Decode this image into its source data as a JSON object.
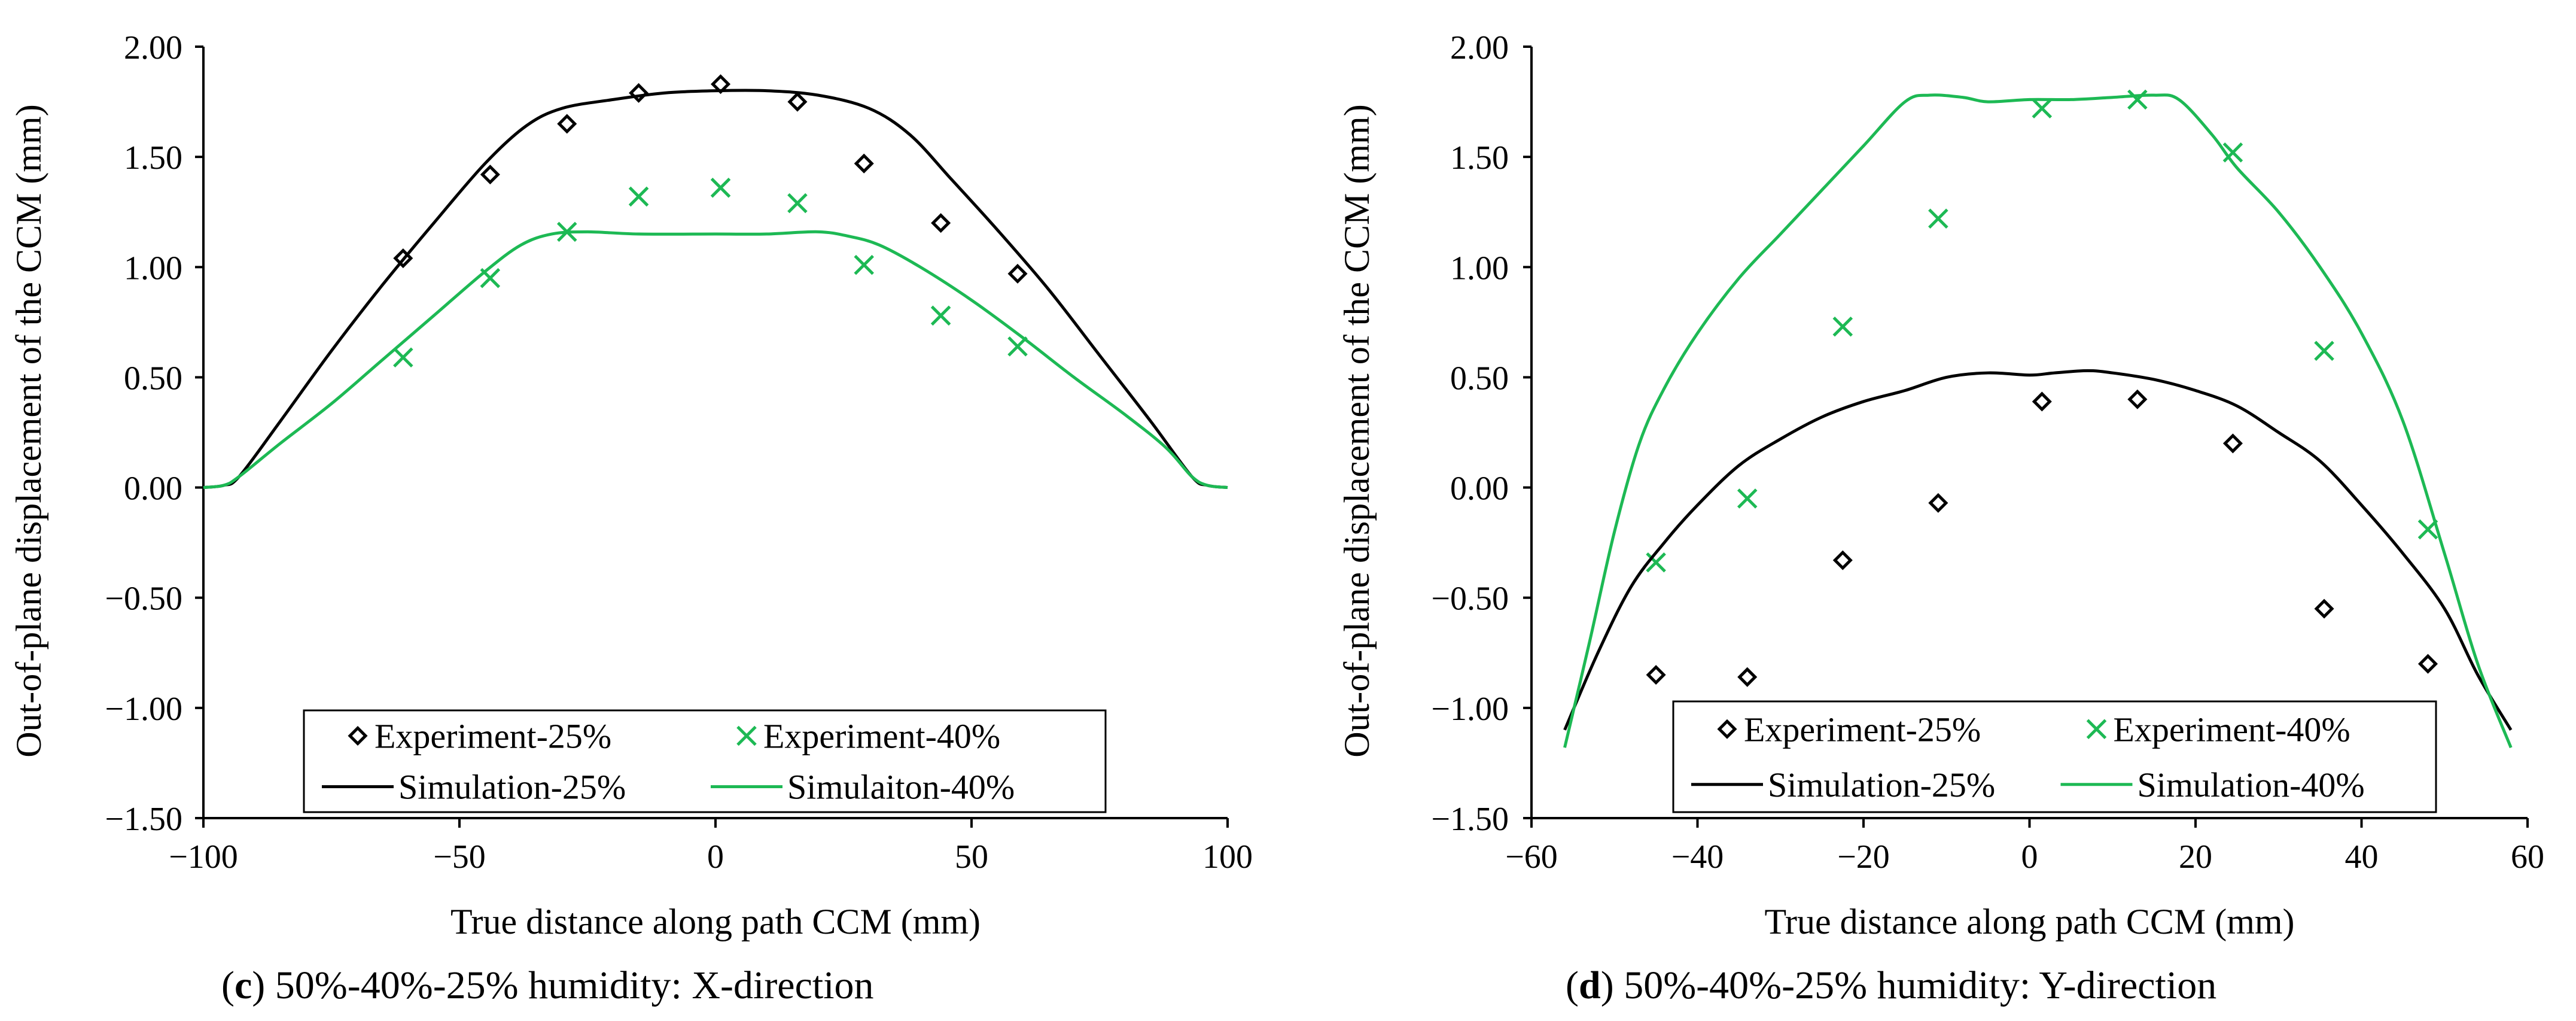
{
  "chart_data": [
    {
      "type": "scatter",
      "caption_letter": "c",
      "caption_text": " 50%-40%-25% humidity: X-direction",
      "xlabel": "True distance along path CCM (mm)",
      "ylabel": "Out-of-plane displacement of the CCM (mm)",
      "xlim": [
        -100,
        100
      ],
      "ylim": [
        -1.5,
        2.0
      ],
      "x_ticks": [
        -100,
        -50,
        0,
        50,
        100
      ],
      "x_tick_labels": [
        "−100",
        "−50",
        "0",
        "50",
        "100"
      ],
      "y_ticks": [
        2.0,
        1.5,
        1.0,
        0.5,
        0.0,
        -0.5,
        -1.0,
        -1.5
      ],
      "y_tick_labels": [
        "2.00",
        "1.50",
        "1.00",
        "0.50",
        "0.00",
        "−0.50",
        "−1.00",
        "−1.50"
      ],
      "legend_position": "bottom-center",
      "series": [
        {
          "name": "Experiment-25%",
          "kind": "marker",
          "marker": "diamond",
          "color": "#000000",
          "x": [
            -61,
            -44,
            -29,
            -15,
            1,
            16,
            29,
            44,
            59
          ],
          "y": [
            1.04,
            1.42,
            1.65,
            1.79,
            1.83,
            1.75,
            1.47,
            1.2,
            0.97
          ]
        },
        {
          "name": "Experiment-40%",
          "kind": "marker",
          "marker": "x",
          "color": "#1db954",
          "x": [
            -61,
            -44,
            -29,
            -15,
            1,
            16,
            29,
            44,
            59
          ],
          "y": [
            0.59,
            0.95,
            1.16,
            1.32,
            1.36,
            1.29,
            1.01,
            0.78,
            0.64
          ]
        },
        {
          "name": "Simulation-25%",
          "kind": "line",
          "color": "#000000",
          "x": [
            -100,
            -96,
            -93,
            -85,
            -75,
            -65,
            -55,
            -45,
            -37,
            -30,
            -20,
            -10,
            0,
            10,
            20,
            30,
            38,
            46,
            55,
            65,
            75,
            85,
            93,
            96,
            100
          ],
          "y": [
            0.0,
            0.01,
            0.05,
            0.3,
            0.62,
            0.92,
            1.2,
            1.47,
            1.64,
            1.72,
            1.76,
            1.79,
            1.8,
            1.8,
            1.78,
            1.72,
            1.6,
            1.4,
            1.17,
            0.9,
            0.6,
            0.3,
            0.05,
            0.01,
            0.0
          ]
        },
        {
          "name": "Simulaiton-40%",
          "kind": "line",
          "color": "#1db954",
          "x": [
            -100,
            -96,
            -93,
            -85,
            -75,
            -65,
            -55,
            -45,
            -38,
            -32,
            -25,
            -15,
            0,
            10,
            20,
            26,
            32,
            40,
            50,
            60,
            70,
            80,
            88,
            93,
            96,
            100
          ],
          "y": [
            0.0,
            0.01,
            0.05,
            0.2,
            0.38,
            0.58,
            0.78,
            0.98,
            1.1,
            1.15,
            1.16,
            1.15,
            1.15,
            1.15,
            1.16,
            1.14,
            1.1,
            1.0,
            0.85,
            0.68,
            0.5,
            0.33,
            0.18,
            0.05,
            0.01,
            0.0
          ]
        }
      ]
    },
    {
      "type": "scatter",
      "caption_letter": "d",
      "caption_text": " 50%-40%-25% humidity: Y-direction",
      "xlabel": "True distance along path CCM (mm)",
      "ylabel": "Out-of-plane displacement of the CCM (mm)",
      "xlim": [
        -60,
        60
      ],
      "ylim": [
        -1.5,
        2.0
      ],
      "x_ticks": [
        -60,
        -40,
        -20,
        0,
        20,
        40,
        60
      ],
      "x_tick_labels": [
        "−60",
        "−40",
        "−20",
        "0",
        "20",
        "40",
        "60"
      ],
      "y_ticks": [
        2.0,
        1.5,
        1.0,
        0.5,
        0.0,
        -0.5,
        -1.0,
        -1.5
      ],
      "y_tick_labels": [
        "2.00",
        "1.50",
        "1.00",
        "0.50",
        "0.00",
        "−0.50",
        "−1.00",
        "−1.50"
      ],
      "legend_position": "bottom-center",
      "series": [
        {
          "name": "Experiment-25%",
          "kind": "marker",
          "marker": "diamond",
          "color": "#000000",
          "x": [
            -45,
            -34,
            -22.5,
            -11,
            1.5,
            13,
            24.5,
            35.5,
            48
          ],
          "y": [
            -0.85,
            -0.86,
            -0.33,
            -0.07,
            0.39,
            0.4,
            0.2,
            -0.55,
            -0.8
          ]
        },
        {
          "name": "Experiment-40%",
          "kind": "marker",
          "marker": "x",
          "color": "#1db954",
          "x": [
            -45,
            -34,
            -22.5,
            -11,
            1.5,
            13,
            24.5,
            35.5,
            48
          ],
          "y": [
            -0.34,
            -0.05,
            0.73,
            1.22,
            1.72,
            1.76,
            1.52,
            0.62,
            -0.19
          ]
        },
        {
          "name": "Simulation-25%",
          "kind": "line",
          "color": "#000000",
          "x": [
            -56,
            -52,
            -48,
            -44,
            -40,
            -35,
            -30,
            -25,
            -20,
            -15,
            -10,
            -5,
            0,
            3,
            7,
            10,
            15,
            20,
            25,
            30,
            35,
            40,
            45,
            50,
            54,
            58
          ],
          "y": [
            -1.1,
            -0.75,
            -0.45,
            -0.25,
            -0.08,
            0.1,
            0.22,
            0.32,
            0.39,
            0.44,
            0.5,
            0.52,
            0.51,
            0.52,
            0.53,
            0.52,
            0.49,
            0.44,
            0.37,
            0.25,
            0.12,
            -0.08,
            -0.3,
            -0.55,
            -0.85,
            -1.1
          ]
        },
        {
          "name": "Simulation-40%",
          "kind": "line",
          "color": "#1db954",
          "x": [
            -56,
            -53,
            -50,
            -47,
            -44,
            -40,
            -35,
            -30,
            -25,
            -20,
            -15,
            -12,
            -8,
            -5,
            0,
            5,
            10,
            15,
            18,
            22,
            25,
            30,
            35,
            40,
            45,
            50,
            54,
            58
          ],
          "y": [
            -1.18,
            -0.7,
            -0.2,
            0.2,
            0.45,
            0.7,
            0.95,
            1.15,
            1.35,
            1.55,
            1.75,
            1.78,
            1.77,
            1.75,
            1.76,
            1.76,
            1.77,
            1.78,
            1.76,
            1.6,
            1.45,
            1.25,
            1.0,
            0.7,
            0.3,
            -0.3,
            -0.8,
            -1.18
          ]
        }
      ]
    }
  ],
  "colors": {
    "green": "#1db954",
    "black": "#000000",
    "axis": "#000000"
  }
}
